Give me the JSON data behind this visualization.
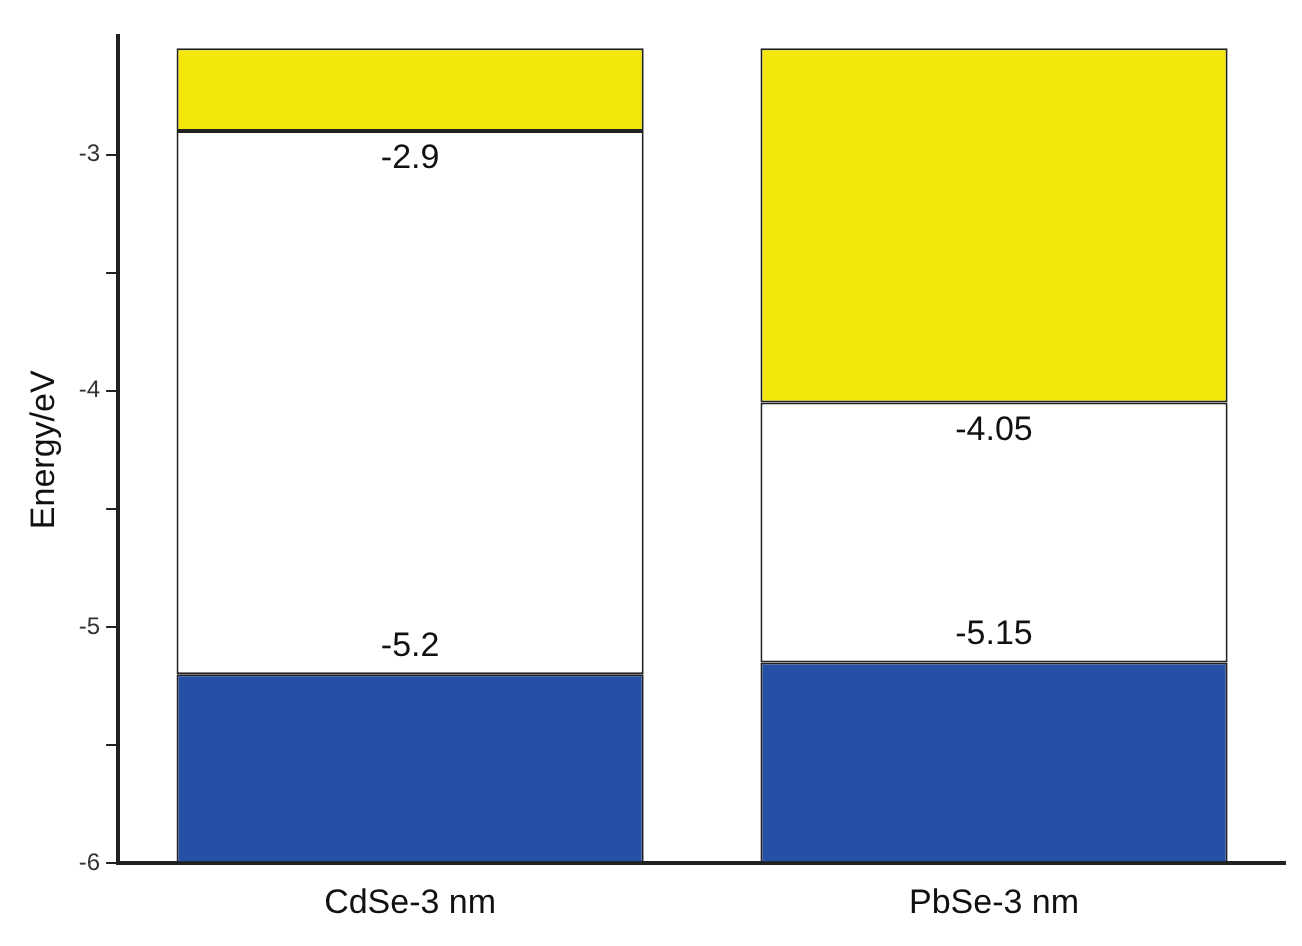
{
  "chart_data": {
    "type": "bar",
    "ylabel": "Energy/eV",
    "categories": [
      "CdSe-3 nm",
      "PbSe-3 nm"
    ],
    "series": [
      {
        "color": "#2550a5",
        "base": [
          -6,
          -6
        ],
        "values": [
          0.8,
          0.85
        ]
      },
      {
        "color": "#ffffff",
        "base": [
          -5.2,
          -5.15
        ],
        "values": [
          2.3,
          1.1
        ]
      },
      {
        "color": "#f3e70c",
        "base": [
          -2.9,
          -4.05
        ],
        "values": [
          0.35,
          1.5
        ]
      }
    ],
    "ylim": [
      -6,
      -2.5
    ],
    "yticks": [
      -6,
      {
        "value": -5.5,
        "label": null
      },
      -5,
      {
        "value": -4.5,
        "label": null
      },
      -4,
      {
        "value": -3.5,
        "label": null
      },
      -3
    ],
    "annotations": [
      {
        "text": "-2.9",
        "x": "CdSe-3 nm",
        "y": -2.9
      },
      {
        "text": "-5.2",
        "x": "CdSe-3 nm",
        "y": -5.2
      },
      {
        "text": "-4.05",
        "x": "PbSe-3 nm",
        "y": -4.05
      },
      {
        "text": "-5.15",
        "x": "PbSe-3 nm",
        "y": -5.15
      }
    ],
    "grid": false,
    "legend": false,
    "stacked": false
  }
}
